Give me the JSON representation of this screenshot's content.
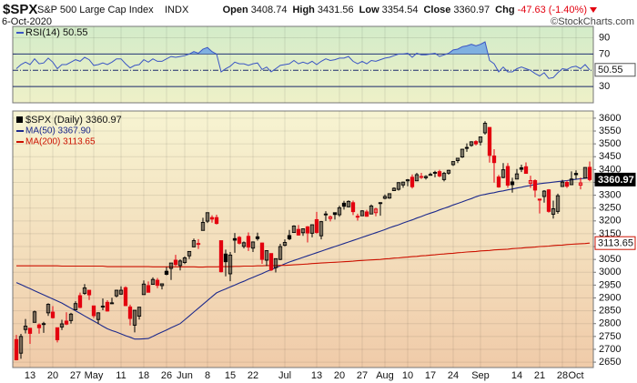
{
  "chart_data": {
    "type": "candlestick",
    "title": "$SPX",
    "subtitle": "S&P 500 Large Cap Index",
    "exchange": "INDX",
    "date": "6-Oct-2020",
    "source": "©StockCharts.com",
    "quote_labels": [
      "Open",
      "High",
      "Low",
      "Close",
      "Chg"
    ],
    "change": "-47.63 (-1.40%)",
    "x": [
      "2020-04-07",
      "2020-04-08",
      "2020-04-09",
      "2020-04-13",
      "2020-04-14",
      "2020-04-15",
      "2020-04-16",
      "2020-04-17",
      "2020-04-20",
      "2020-04-21",
      "2020-04-22",
      "2020-04-23",
      "2020-04-24",
      "2020-04-27",
      "2020-04-28",
      "2020-04-29",
      "2020-04-30",
      "2020-05-01",
      "2020-05-04",
      "2020-05-05",
      "2020-05-06",
      "2020-05-07",
      "2020-05-08",
      "2020-05-11",
      "2020-05-12",
      "2020-05-13",
      "2020-05-14",
      "2020-05-15",
      "2020-05-18",
      "2020-05-19",
      "2020-05-20",
      "2020-05-21",
      "2020-05-22",
      "2020-05-26",
      "2020-05-27",
      "2020-05-28",
      "2020-05-29",
      "2020-06-01",
      "2020-06-02",
      "2020-06-03",
      "2020-06-04",
      "2020-06-05",
      "2020-06-08",
      "2020-06-09",
      "2020-06-10",
      "2020-06-11",
      "2020-06-12",
      "2020-06-15",
      "2020-06-16",
      "2020-06-17",
      "2020-06-18",
      "2020-06-19",
      "2020-06-22",
      "2020-06-23",
      "2020-06-24",
      "2020-06-25",
      "2020-06-26",
      "2020-06-29",
      "2020-06-30",
      "2020-07-01",
      "2020-07-02",
      "2020-07-06",
      "2020-07-07",
      "2020-07-08",
      "2020-07-09",
      "2020-07-10",
      "2020-07-13",
      "2020-07-14",
      "2020-07-15",
      "2020-07-16",
      "2020-07-17",
      "2020-07-20",
      "2020-07-21",
      "2020-07-22",
      "2020-07-23",
      "2020-07-24",
      "2020-07-27",
      "2020-07-28",
      "2020-07-29",
      "2020-07-30",
      "2020-07-31",
      "2020-08-03",
      "2020-08-04",
      "2020-08-05",
      "2020-08-06",
      "2020-08-07",
      "2020-08-10",
      "2020-08-11",
      "2020-08-12",
      "2020-08-13",
      "2020-08-14",
      "2020-08-17",
      "2020-08-18",
      "2020-08-19",
      "2020-08-20",
      "2020-08-21",
      "2020-08-24",
      "2020-08-25",
      "2020-08-26",
      "2020-08-27",
      "2020-08-28",
      "2020-08-31",
      "2020-09-01",
      "2020-09-02",
      "2020-09-03",
      "2020-09-04",
      "2020-09-08",
      "2020-09-09",
      "2020-09-10",
      "2020-09-11",
      "2020-09-14",
      "2020-09-15",
      "2020-09-16",
      "2020-09-17",
      "2020-09-18",
      "2020-09-21",
      "2020-09-22",
      "2020-09-23",
      "2020-09-24",
      "2020-09-25",
      "2020-09-28",
      "2020-09-29",
      "2020-09-30",
      "2020-10-01",
      "2020-10-02",
      "2020-10-05",
      "2020-10-06"
    ],
    "xticks": [
      {
        "value": "2020-04-13",
        "label": "13"
      },
      {
        "value": "2020-04-20",
        "label": "20"
      },
      {
        "value": "2020-04-27",
        "label": "27"
      },
      {
        "value": "2020-05-01",
        "label": "May"
      },
      {
        "value": "2020-05-11",
        "label": "11"
      },
      {
        "value": "2020-05-18",
        "label": "18"
      },
      {
        "value": "2020-05-26",
        "label": "26"
      },
      {
        "value": "2020-06-01",
        "label": "Jun"
      },
      {
        "value": "2020-06-08",
        "label": "8"
      },
      {
        "value": "2020-06-15",
        "label": "15"
      },
      {
        "value": "2020-06-22",
        "label": "22"
      },
      {
        "value": "2020-07-01",
        "label": "Jul"
      },
      {
        "value": "2020-07-13",
        "label": "13"
      },
      {
        "value": "2020-07-20",
        "label": "20"
      },
      {
        "value": "2020-07-27",
        "label": "27"
      },
      {
        "value": "2020-08-03",
        "label": "Aug"
      },
      {
        "value": "2020-08-10",
        "label": "10"
      },
      {
        "value": "2020-08-17",
        "label": "17"
      },
      {
        "value": "2020-08-24",
        "label": "24"
      },
      {
        "value": "2020-09-01",
        "label": "Sep"
      },
      {
        "value": "2020-09-14",
        "label": "14"
      },
      {
        "value": "2020-09-21",
        "label": "21"
      },
      {
        "value": "2020-09-28",
        "label": "28"
      },
      {
        "value": "2020-10-01",
        "label": "Oct"
      }
    ],
    "ohlc": {
      "name": "$SPX (Daily) 3360.97",
      "up_color": "#000000",
      "down_color": "#e3000f",
      "open": [
        2738,
        2685,
        2777,
        2782,
        2805,
        2795,
        2799,
        2842,
        2845,
        2784,
        2787,
        2810,
        2812,
        2854,
        2909,
        2918,
        2930,
        2869,
        2816,
        2868,
        2883,
        2879,
        2908,
        2915,
        2940,
        2865,
        2794,
        2829,
        2913,
        2948,
        2953,
        2969,
        2948,
        3004,
        3015,
        3047,
        3026,
        3038,
        3064,
        3099,
        3111,
        3163,
        3199,
        3213,
        3213,
        3123,
        3071,
        2994,
        3131,
        3136,
        3101,
        3140,
        3094,
        3138,
        3114,
        3047,
        3073,
        3018,
        3050,
        3105,
        3143,
        3155,
        3167,
        3154,
        3177,
        3152,
        3205,
        3142,
        3225,
        3209,
        3232,
        3224,
        3269,
        3255,
        3271,
        3218,
        3220,
        3235,
        3227,
        3232,
        3270,
        3288,
        3289,
        3318,
        3323,
        3340,
        3356,
        3370,
        3356,
        3373,
        3368,
        3380,
        3387,
        3392,
        3361,
        3386,
        3419,
        3435,
        3449,
        3486,
        3494,
        3509,
        3507,
        3543,
        3564,
        3453,
        3371,
        3369,
        3412,
        3352,
        3363,
        3407,
        3411,
        3346,
        3357,
        3285,
        3295,
        3321,
        3226,
        3237,
        3334,
        3350,
        3341,
        3385,
        3339,
        3367,
        3408.74
      ],
      "high": [
        2756,
        2760,
        2818,
        2782,
        2851,
        2801,
        2807,
        2879,
        2868,
        2785,
        2815,
        2844,
        2842,
        2887,
        2921,
        2954,
        2930,
        2869,
        2844,
        2898,
        2891,
        2901,
        2932,
        2945,
        2945,
        2874,
        2852,
        2865,
        2968,
        2964,
        2980,
        2978,
        2956,
        3021,
        3036,
        3068,
        3050,
        3062,
        3081,
        3131,
        3129,
        3212,
        3233,
        3222,
        3224,
        3123,
        3088,
        3079,
        3153,
        3141,
        3120,
        3155,
        3120,
        3154,
        3115,
        3086,
        3073,
        3054,
        3111,
        3128,
        3165,
        3183,
        3184,
        3171,
        3180,
        3186,
        3235,
        3200,
        3238,
        3221,
        3233,
        3259,
        3278,
        3280,
        3279,
        3228,
        3242,
        3243,
        3264,
        3251,
        3273,
        3303,
        3306,
        3331,
        3351,
        3353,
        3363,
        3381,
        3387,
        3387,
        3378,
        3388,
        3395,
        3399,
        3391,
        3399,
        3432,
        3444,
        3481,
        3502,
        3510,
        3514,
        3528,
        3588,
        3564,
        3479,
        3379,
        3425,
        3425,
        3368,
        3402,
        3419,
        3428,
        3376,
        3362,
        3286,
        3320,
        3324,
        3279,
        3306,
        3360,
        3357,
        3393,
        3397,
        3369,
        3409,
        3431.56
      ],
      "low": [
        2657,
        2663,
        2762,
        2721,
        2805,
        2761,
        2764,
        2830,
        2820,
        2727,
        2775,
        2794,
        2800,
        2852,
        2860,
        2912,
        2892,
        2822,
        2798,
        2852,
        2847,
        2876,
        2902,
        2912,
        2869,
        2793,
        2766,
        2816,
        2913,
        2922,
        2953,
        2938,
        2933,
        2988,
        2970,
        3024,
        3007,
        3032,
        3052,
        3097,
        3091,
        3163,
        3192,
        3193,
        3186,
        2999,
        2984,
        2965,
        3076,
        3108,
        3093,
        3083,
        3079,
        3123,
        3033,
        3024,
        3005,
        2999,
        3047,
        3101,
        3125,
        3155,
        3143,
        3142,
        3116,
        3136,
        3150,
        3128,
        3200,
        3198,
        3205,
        3216,
        3244,
        3253,
        3223,
        3201,
        3219,
        3216,
        3227,
        3218,
        3220,
        3284,
        3286,
        3317,
        3318,
        3329,
        3335,
        3326,
        3356,
        3363,
        3361,
        3379,
        3370,
        3370,
        3354,
        3380,
        3414,
        3425,
        3445,
        3469,
        3489,
        3494,
        3494,
        3536,
        3427,
        3349,
        3329,
        3366,
        3329,
        3310,
        3363,
        3390,
        3384,
        3328,
        3292,
        3229,
        3271,
        3232,
        3209,
        3228,
        3332,
        3328,
        3340,
        3362,
        3323,
        3367,
        3354.54
      ],
      "close": [
        2659,
        2750,
        2790,
        2762,
        2846,
        2784,
        2800,
        2875,
        2823,
        2737,
        2799,
        2798,
        2837,
        2878,
        2863,
        2939,
        2912,
        2831,
        2842,
        2868,
        2849,
        2881,
        2930,
        2930,
        2870,
        2820,
        2852,
        2864,
        2954,
        2922,
        2972,
        2949,
        2955,
        2992,
        3036,
        3030,
        3044,
        3056,
        3081,
        3123,
        3112,
        3194,
        3232,
        3207,
        3190,
        3002,
        3041,
        3067,
        3125,
        3113,
        3115,
        3098,
        3118,
        3131,
        3050,
        3084,
        3009,
        3053,
        3100,
        3116,
        3130,
        3180,
        3145,
        3169,
        3153,
        3185,
        3155,
        3197,
        3227,
        3216,
        3225,
        3251,
        3257,
        3276,
        3236,
        3216,
        3239,
        3218,
        3258,
        3246,
        3271,
        3295,
        3306,
        3327,
        3349,
        3351,
        3360,
        3333,
        3380,
        3373,
        3373,
        3381,
        3389,
        3375,
        3385,
        3397,
        3431,
        3444,
        3479,
        3485,
        3508,
        3500,
        3527,
        3580,
        3455,
        3427,
        3332,
        3399,
        3339,
        3341,
        3383,
        3401,
        3385,
        3357,
        3320,
        3281,
        3316,
        3237,
        3247,
        3298,
        3351,
        3335,
        3363,
        3380,
        3348,
        3408,
        3360.97
      ]
    },
    "series": [
      {
        "name": "MA(50) 3367.90",
        "color": "#1d2a8c",
        "values": [
          2960,
          2952,
          2944,
          2936,
          2928,
          2920,
          2912,
          2904,
          2896,
          2888,
          2880,
          2870,
          2860,
          2850,
          2840,
          2830,
          2820,
          2810,
          2800,
          2790,
          2780,
          2773,
          2767,
          2760,
          2753,
          2747,
          2740,
          2740,
          2741,
          2742,
          2750,
          2759,
          2767,
          2775,
          2784,
          2792,
          2800,
          2815,
          2830,
          2845,
          2860,
          2875,
          2890,
          2905,
          2920,
          2928,
          2935,
          2943,
          2950,
          2958,
          2965,
          2973,
          2980,
          2988,
          2995,
          3003,
          3010,
          3018,
          3025,
          3033,
          3040,
          3046,
          3052,
          3058,
          3064,
          3070,
          3076,
          3082,
          3088,
          3094,
          3100,
          3106,
          3112,
          3118,
          3124,
          3130,
          3136,
          3142,
          3148,
          3154,
          3160,
          3166,
          3173,
          3179,
          3185,
          3192,
          3198,
          3204,
          3211,
          3217,
          3224,
          3230,
          3236,
          3243,
          3249,
          3255,
          3262,
          3268,
          3274,
          3281,
          3287,
          3294,
          3300,
          3303,
          3307,
          3310,
          3314,
          3317,
          3321,
          3324,
          3328,
          3331,
          3335,
          3338,
          3342,
          3345,
          3347,
          3349,
          3351,
          3353,
          3355,
          3357,
          3360,
          3362,
          3364,
          3366,
          3367.9
        ]
      },
      {
        "name": "MA(200) 3113.65",
        "color": "#cc1100",
        "values": [
          3025,
          3025,
          3025,
          3025,
          3025,
          3025,
          3025,
          3025,
          3025,
          3025,
          3024,
          3024,
          3024,
          3024,
          3024,
          3024,
          3024,
          3024,
          3024,
          3024,
          3022,
          3022,
          3022,
          3022,
          3022,
          3022,
          3022,
          3022,
          3022,
          3022,
          3021,
          3021,
          3021,
          3021,
          3021,
          3021,
          3021,
          3021,
          3021,
          3021,
          3020,
          3020,
          3021,
          3021,
          3021,
          3022,
          3022,
          3022,
          3023,
          3023,
          3024,
          3024,
          3024,
          3025,
          3025,
          3026,
          3026,
          3026,
          3027,
          3027,
          3028,
          3029,
          3030,
          3031,
          3032,
          3034,
          3035,
          3036,
          3037,
          3038,
          3039,
          3040,
          3041,
          3042,
          3043,
          3045,
          3046,
          3047,
          3048,
          3049,
          3050,
          3052,
          3053,
          3055,
          3056,
          3058,
          3059,
          3061,
          3062,
          3064,
          3065,
          3067,
          3068,
          3070,
          3071,
          3073,
          3074,
          3076,
          3077,
          3079,
          3080,
          3081,
          3083,
          3084,
          3085,
          3087,
          3088,
          3089,
          3090,
          3092,
          3093,
          3094,
          3096,
          3097,
          3098,
          3100,
          3101,
          3102,
          3104,
          3105,
          3106,
          3108,
          3109,
          3110,
          3111,
          3112,
          3113.65
        ]
      }
    ],
    "ylim": [
      2629,
      3628
    ],
    "yticks": [
      2650,
      2700,
      2750,
      2800,
      2850,
      2900,
      2950,
      3000,
      3050,
      3100,
      3150,
      3200,
      3250,
      3300,
      3350,
      3400,
      3450,
      3500,
      3550,
      3600
    ],
    "grid": true,
    "rsi": {
      "name": "RSI(14) 50.55",
      "color": "#3a55c4",
      "fill_color": "#7fb0e0",
      "ylim": [
        10,
        104
      ],
      "yticks": [
        30,
        70,
        90
      ],
      "levels": [
        30,
        70
      ],
      "midline": 50,
      "values": [
        52,
        57,
        60,
        57,
        64,
        58,
        59,
        65,
        60,
        52,
        57,
        57,
        60,
        63,
        61,
        66,
        63,
        56,
        57,
        59,
        57,
        60,
        64,
        64,
        58,
        53,
        56,
        57,
        63,
        60,
        64,
        61,
        61,
        64,
        67,
        66,
        67,
        68,
        70,
        73,
        71,
        76,
        78,
        73,
        70,
        48,
        52,
        55,
        60,
        58,
        58,
        56,
        58,
        59,
        51,
        54,
        48,
        52,
        56,
        57,
        58,
        62,
        58,
        60,
        58,
        61,
        57,
        61,
        64,
        62,
        63,
        65,
        65,
        67,
        61,
        58,
        61,
        58,
        62,
        61,
        63,
        65,
        66,
        68,
        70,
        70,
        71,
        66,
        71,
        69,
        69,
        70,
        71,
        67,
        69,
        71,
        75,
        76,
        79,
        80,
        82,
        80,
        82,
        85,
        62,
        58,
        48,
        54,
        48,
        48,
        52,
        54,
        52,
        50,
        46,
        43,
        47,
        40,
        41,
        47,
        52,
        51,
        54,
        55,
        52,
        57,
        50.55
      ]
    }
  }
}
